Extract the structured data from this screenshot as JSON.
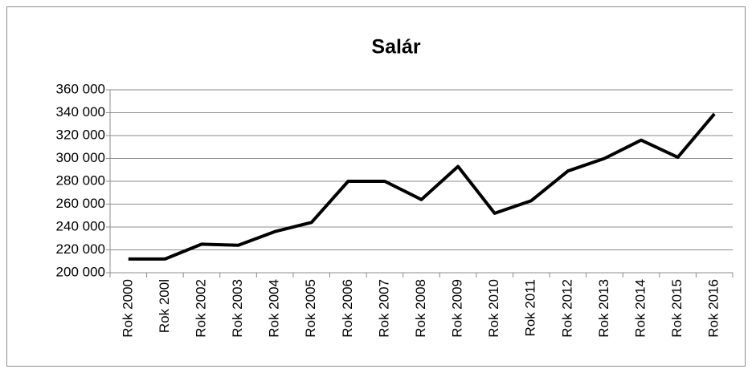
{
  "chart_data": {
    "type": "line",
    "title": "Salár",
    "categories": [
      "Rok 2000",
      "Rok 200l",
      "Rok 2002",
      "Rok 2003",
      "Rok 2004",
      "Rok 2005",
      "Rok 2006",
      "Rok 2007",
      "Rok 2008",
      "Rok 2009",
      "Rok 2010",
      "Rok 2011",
      "Rok 2012",
      "Rok 2013",
      "Rok 2014",
      "Rok 2015",
      "Rok 2016"
    ],
    "values": [
      212000,
      212000,
      225000,
      224000,
      236000,
      244000,
      280000,
      280000,
      264000,
      293000,
      252000,
      263000,
      289000,
      300000,
      316000,
      301000,
      339000
    ],
    "color": "#000000",
    "ylim": [
      200000,
      360000
    ],
    "yticks": [
      {
        "value": 200000,
        "label": "200 000"
      },
      {
        "value": 220000,
        "label": "220 000"
      },
      {
        "value": 240000,
        "label": "240 000"
      },
      {
        "value": 260000,
        "label": "260 000"
      },
      {
        "value": 280000,
        "label": "280 000"
      },
      {
        "value": 300000,
        "label": "300 000"
      },
      {
        "value": 320000,
        "label": "320 000"
      },
      {
        "value": 340000,
        "label": "340 000"
      },
      {
        "value": 360000,
        "label": "360 000"
      }
    ],
    "grid": true
  }
}
